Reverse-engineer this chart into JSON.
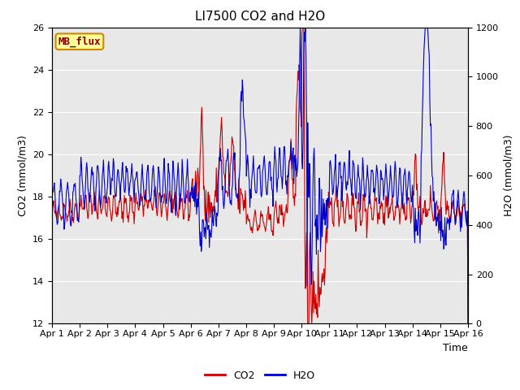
{
  "title": "LI7500 CO2 and H2O",
  "xlabel": "Time",
  "ylabel_left": "CO2 (mmol/m3)",
  "ylabel_right": "H2O (mmol/m3)",
  "co2_ylim": [
    12,
    26
  ],
  "h2o_ylim": [
    0,
    1200
  ],
  "co2_yticks": [
    12,
    14,
    16,
    18,
    20,
    22,
    24,
    26
  ],
  "h2o_yticks": [
    0,
    200,
    400,
    600,
    800,
    1000,
    1200
  ],
  "x_labels": [
    "Apr 1",
    "Apr 2",
    "Apr 3",
    "Apr 4",
    "Apr 5",
    "Apr 6",
    "Apr 7",
    "Apr 8",
    "Apr 9",
    "Apr 10",
    "Apr 11",
    "Apr 12",
    "Apr 13",
    "Apr 14",
    "Apr 15",
    "Apr 16"
  ],
  "co2_color": "#cc0000",
  "h2o_color": "#0000cc",
  "fig_bg_color": "#ffffff",
  "plot_bg_color": "#e8e8e8",
  "grid_color": "#ffffff",
  "annotation_text": "MB_flux",
  "annotation_bg": "#ffff99",
  "annotation_border": "#cc8800",
  "title_fontsize": 11,
  "axis_fontsize": 9,
  "tick_fontsize": 8,
  "legend_fontsize": 9
}
